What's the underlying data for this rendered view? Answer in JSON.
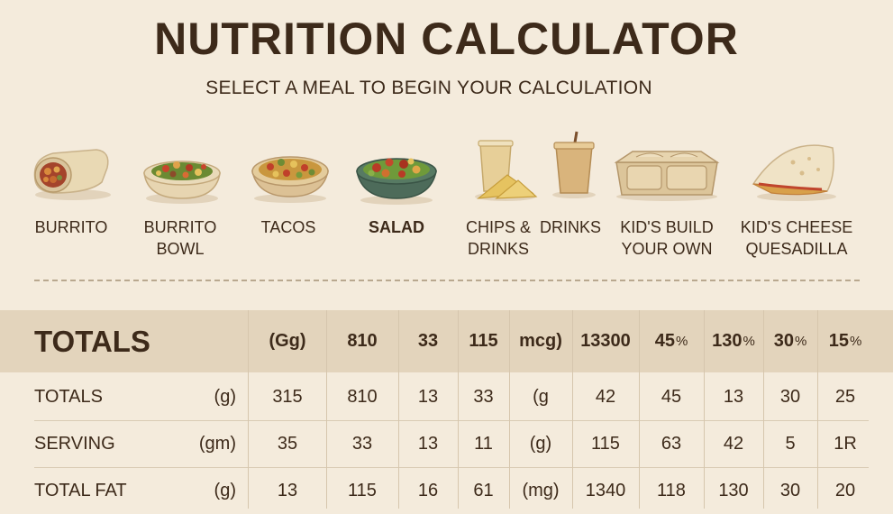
{
  "header": {
    "title": "NUTRITION CALCULATOR",
    "subtitle": "SELECT A MEAL TO BEGIN YOUR CALCULATION"
  },
  "meals": [
    {
      "name": "burrito",
      "line1": "BURRITO",
      "line2": "",
      "icon": "burrito-icon"
    },
    {
      "name": "burrito-bowl",
      "line1": "BURRITO",
      "line2": "BOWL",
      "icon": "burrito-bowl-icon"
    },
    {
      "name": "tacos",
      "line1": "TACOS",
      "line2": "",
      "icon": "tacos-icon"
    },
    {
      "name": "salad",
      "line1": "SALAD",
      "line2": "",
      "icon": "salad-icon",
      "selected": true
    },
    {
      "name": "chips-drinks",
      "line1": "CHIPS &",
      "line2": "DRINKS",
      "icon": "chips-and-drink-icon"
    },
    {
      "name": "drinks",
      "line1": "DRINKS",
      "line2": "",
      "icon": "drink-cup-icon"
    },
    {
      "name": "kids-build",
      "line1": "KID'S BUILD",
      "line2": "YOUR OWN",
      "icon": "kids-tray-icon"
    },
    {
      "name": "kids-quesadilla",
      "line1": "KID'S CHEESE",
      "line2": "QUESADILLA",
      "icon": "quesadilla-icon"
    }
  ],
  "table": {
    "header": {
      "label": "TOTALS",
      "cells": [
        "(Gg)",
        "810",
        "33",
        "115",
        "mcg)",
        "13300",
        "45",
        "130",
        "30",
        "15"
      ],
      "pct_suffix": "%"
    },
    "rows": [
      {
        "label": "TOTALS",
        "unit": "(g)",
        "cells": [
          "315",
          "810",
          "13",
          "33",
          "(g",
          "42",
          "45",
          "13",
          "30",
          "25"
        ]
      },
      {
        "label": "SERVING",
        "unit": "(gm)",
        "cells": [
          "35",
          "33",
          "13",
          "11",
          "(g)",
          "115",
          "63",
          "42",
          "5",
          "1R"
        ]
      },
      {
        "label": "TOTAL FAT",
        "unit": "(g)",
        "cells": [
          "13",
          "115",
          "16",
          "61",
          "(mg)",
          "1340",
          "118",
          "130",
          "30",
          "20"
        ]
      }
    ]
  },
  "colors": {
    "background": "#f4ebdc",
    "header_band": "#e3d4bc",
    "text": "#3d2a1a",
    "divider": "#b9a88f"
  }
}
